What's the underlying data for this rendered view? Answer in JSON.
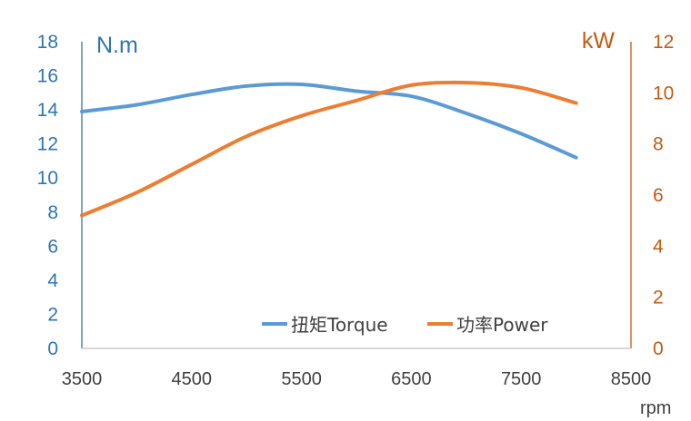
{
  "chart_data": {
    "type": "line",
    "x_unit": "rpm",
    "x_ticks": [
      3500,
      4500,
      5500,
      6500,
      7500,
      8500
    ],
    "xlim": [
      3500,
      8500
    ],
    "y_left": {
      "unit": "N.m",
      "ylim": [
        0,
        18
      ],
      "ticks": [
        0,
        2,
        4,
        6,
        8,
        10,
        12,
        14,
        16,
        18
      ],
      "color": "#2e75b6"
    },
    "y_right": {
      "unit": "kW",
      "ylim": [
        0,
        12
      ],
      "ticks": [
        0,
        2,
        4,
        6,
        8,
        10,
        12
      ],
      "color": "#c55a11"
    },
    "grid": false,
    "legend_position": "bottom-right",
    "series": [
      {
        "name": "扭矩Torque",
        "axis": "left",
        "color": "#5b9bd5",
        "x": [
          3500,
          4000,
          4500,
          5000,
          5500,
          6000,
          6500,
          7000,
          7500,
          8000
        ],
        "y": [
          13.9,
          14.3,
          14.9,
          15.4,
          15.5,
          15.1,
          14.8,
          13.8,
          12.6,
          11.2
        ]
      },
      {
        "name": "功率Power",
        "axis": "right",
        "color": "#ed7d31",
        "x": [
          3500,
          4000,
          4500,
          5000,
          5500,
          6000,
          6500,
          7000,
          7500,
          8000
        ],
        "y": [
          5.2,
          6.1,
          7.2,
          8.3,
          9.1,
          9.7,
          10.3,
          10.4,
          10.2,
          9.6
        ]
      }
    ]
  }
}
